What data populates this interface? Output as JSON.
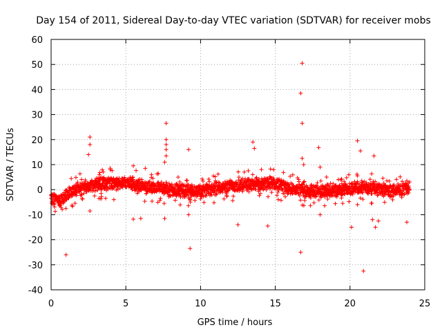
{
  "chart_data": {
    "type": "scatter",
    "title": "Day 154 of 2011, Sidereal Day-to-day VTEC variation (SDTVAR) for receiver mobs",
    "xlabel": "GPS time / hours",
    "ylabel": "SDTVAR / TECUs",
    "xlim": [
      0,
      25
    ],
    "ylim": [
      -40,
      60
    ],
    "xticks": [
      0,
      5,
      10,
      15,
      20,
      25
    ],
    "yticks": [
      -40,
      -30,
      -20,
      -10,
      0,
      10,
      20,
      30,
      40,
      50,
      60
    ],
    "grid": true,
    "marker": "+",
    "color": "#ff0000",
    "band_centre": [
      [
        0.0,
        -3.2
      ],
      [
        0.5,
        -4.5
      ],
      [
        1.0,
        -2.0
      ],
      [
        2.0,
        0.8
      ],
      [
        3.0,
        1.8
      ],
      [
        4.0,
        2.6
      ],
      [
        5.0,
        2.8
      ],
      [
        6.0,
        1.5
      ],
      [
        7.0,
        0.8
      ],
      [
        8.0,
        0.0
      ],
      [
        9.0,
        -0.5
      ],
      [
        10.0,
        -0.5
      ],
      [
        11.0,
        0.2
      ],
      [
        12.0,
        1.0
      ],
      [
        13.0,
        1.8
      ],
      [
        14.0,
        2.2
      ],
      [
        15.0,
        2.6
      ],
      [
        16.0,
        0.2
      ],
      [
        17.0,
        -0.5
      ],
      [
        18.0,
        -0.8
      ],
      [
        19.0,
        -0.6
      ],
      [
        20.0,
        0.2
      ],
      [
        21.0,
        0.8
      ],
      [
        22.0,
        0.2
      ],
      [
        23.0,
        -0.8
      ],
      [
        24.0,
        0.8
      ]
    ],
    "outliers": [
      [
        1.0,
        -26.0
      ],
      [
        2.6,
        21.0
      ],
      [
        2.6,
        18.0
      ],
      [
        2.5,
        14.0
      ],
      [
        2.6,
        -8.5
      ],
      [
        5.5,
        9.5
      ],
      [
        5.5,
        -11.8
      ],
      [
        6.3,
        8.5
      ],
      [
        7.7,
        26.5
      ],
      [
        7.7,
        20.0
      ],
      [
        7.7,
        18.0
      ],
      [
        7.7,
        16.0
      ],
      [
        7.7,
        13.5
      ],
      [
        7.6,
        11.0
      ],
      [
        7.6,
        -11.5
      ],
      [
        9.2,
        16.0
      ],
      [
        9.3,
        -23.5
      ],
      [
        9.2,
        -10.0
      ],
      [
        8.5,
        5.0
      ],
      [
        12.5,
        -14.0
      ],
      [
        13.5,
        19.0
      ],
      [
        13.6,
        16.5
      ],
      [
        14.5,
        -14.5
      ],
      [
        16.8,
        50.5
      ],
      [
        16.7,
        38.5
      ],
      [
        16.8,
        26.5
      ],
      [
        16.8,
        12.5
      ],
      [
        16.9,
        10.0
      ],
      [
        16.7,
        -25.0
      ],
      [
        17.9,
        16.8
      ],
      [
        18.0,
        9.0
      ],
      [
        18.0,
        -10.0
      ],
      [
        20.5,
        19.5
      ],
      [
        20.7,
        15.5
      ],
      [
        20.5,
        5.5
      ],
      [
        20.5,
        -6.0
      ],
      [
        20.1,
        -15.0
      ],
      [
        20.9,
        -32.5
      ],
      [
        21.6,
        13.5
      ],
      [
        21.5,
        -12.0
      ],
      [
        21.7,
        -15.0
      ],
      [
        21.9,
        -12.5
      ],
      [
        23.8,
        -13.0
      ],
      [
        23.8,
        3.5
      ],
      [
        6.0,
        -11.5
      ],
      [
        11.0,
        3.5
      ],
      [
        4.2,
        -4.0
      ],
      [
        3.2,
        -3.5
      ],
      [
        15.2,
        -4.0
      ]
    ]
  }
}
